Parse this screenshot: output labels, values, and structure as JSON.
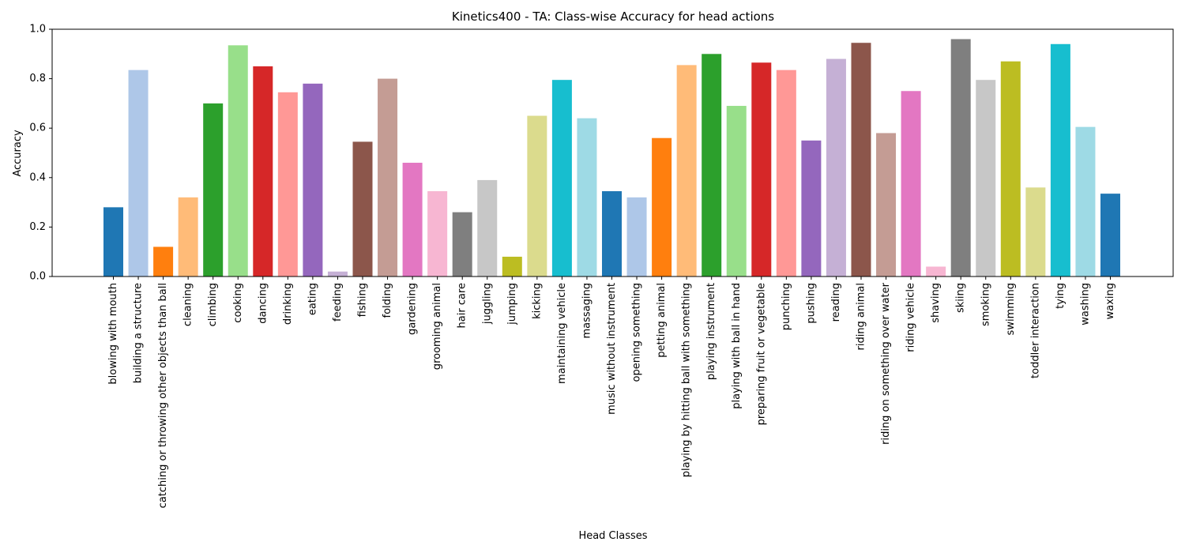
{
  "chart_data": {
    "type": "bar",
    "title": "Kinetics400 - TA: Class-wise Accuracy for head actions",
    "xlabel": "Head Classes",
    "ylabel": "Accuracy",
    "ylim": [
      0,
      1.0
    ],
    "yticks": [
      "0.0",
      "0.2",
      "0.4",
      "0.6",
      "0.8",
      "1.0"
    ],
    "grid": false,
    "categories": [
      "blowing with mouth",
      "building a structure",
      "catching or throwing other objects than ball",
      "cleaning",
      "climbing",
      "cooking",
      "dancing",
      "drinking",
      "eating",
      "feeding",
      "fishing",
      "folding",
      "gardening",
      "grooming animal",
      "hair care",
      "juggling",
      "jumping",
      "kicking",
      "maintaining vehicle",
      "massaging",
      "music without instrument",
      "opening something",
      "petting animal",
      "playing by hitting ball with something",
      "playing instrument",
      "playing with ball in hand",
      "preparing fruit or vegetable",
      "punching",
      "pushing",
      "reading",
      "riding animal",
      "riding on something over water",
      "riding vehicle",
      "shaving",
      "skiing",
      "smoking",
      "swimming",
      "toddler interaction",
      "tying",
      "washing",
      "waxing"
    ],
    "values": [
      0.28,
      0.835,
      0.12,
      0.32,
      0.7,
      0.935,
      0.85,
      0.745,
      0.78,
      0.02,
      0.545,
      0.8,
      0.46,
      0.345,
      0.26,
      0.39,
      0.08,
      0.65,
      0.795,
      0.64,
      0.345,
      0.32,
      0.56,
      0.855,
      0.9,
      0.69,
      0.865,
      0.835,
      0.55,
      0.88,
      0.945,
      0.58,
      0.75,
      0.04,
      0.96,
      0.795,
      0.87,
      0.36,
      0.94,
      0.605,
      0.335
    ],
    "colors": [
      "#1f77b4",
      "#aec7e8",
      "#ff7f0e",
      "#ffbb78",
      "#2ca02c",
      "#98df8a",
      "#d62728",
      "#ff9896",
      "#9467bd",
      "#c5b0d5",
      "#8c564b",
      "#c49c94",
      "#e377c2",
      "#f7b6d2",
      "#7f7f7f",
      "#c7c7c7",
      "#bcbd22",
      "#dbdb8d",
      "#17becf",
      "#9edae5"
    ]
  }
}
